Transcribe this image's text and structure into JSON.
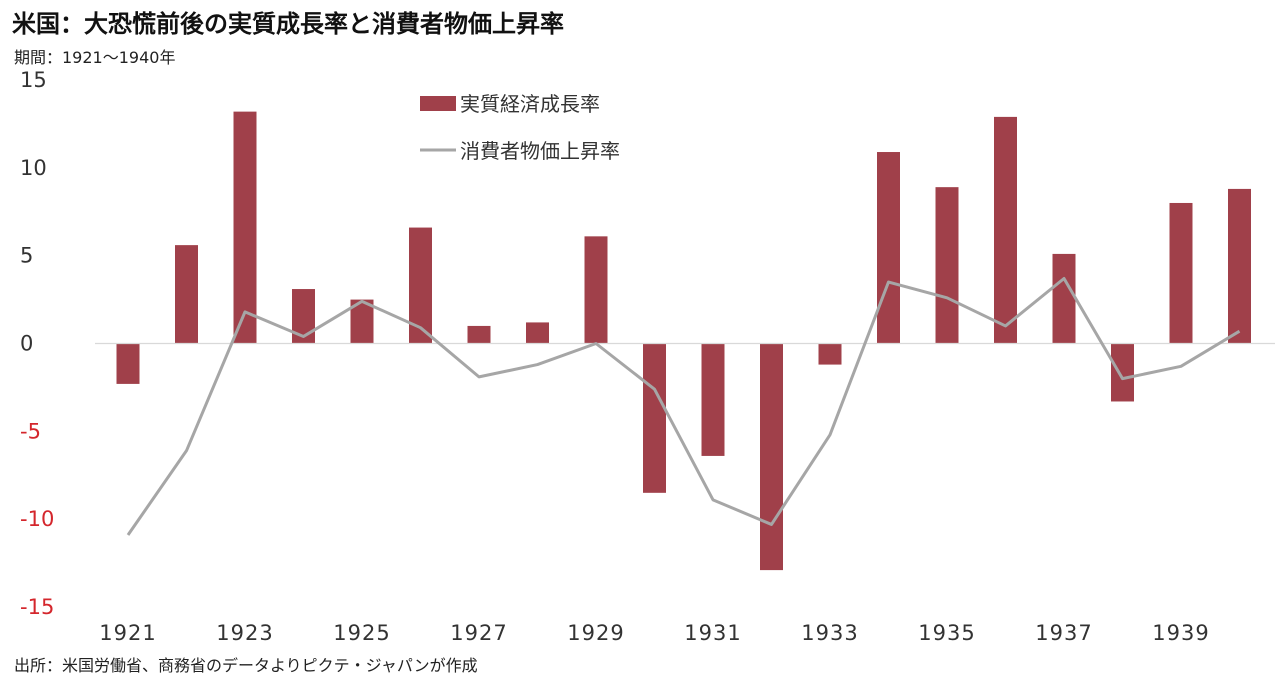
{
  "header": {
    "title": "米国：大恐慌前後の実質成長率と消費者物価上昇率",
    "subtitle": "期間：1921～1940年"
  },
  "footer": {
    "source": "出所：米国労働省、商務省のデータよりピクテ・ジャパンが作成"
  },
  "colors": {
    "bar": "#a0404a",
    "line": "#a6a6a6",
    "negative_tick": "#d4262c",
    "positive_tick": "#333333"
  },
  "chart_data": {
    "type": "bar",
    "categories": [
      1921,
      1922,
      1923,
      1924,
      1925,
      1926,
      1927,
      1928,
      1929,
      1930,
      1931,
      1932,
      1933,
      1934,
      1935,
      1936,
      1937,
      1938,
      1939,
      1940
    ],
    "x_tick_labels": [
      "1921",
      "1923",
      "1925",
      "1927",
      "1929",
      "1931",
      "1933",
      "1935",
      "1937",
      "1939"
    ],
    "ylim": [
      -15,
      15
    ],
    "y_ticks": [
      15,
      10,
      5,
      0,
      -5,
      -10,
      -15
    ],
    "y_tick_labels": [
      "15",
      "10",
      "5",
      "0",
      "-5",
      "-10",
      "-15"
    ],
    "legend_position": "top-center",
    "series": [
      {
        "name": "実質経済成長率",
        "type": "bar",
        "values": [
          -2.3,
          5.6,
          13.2,
          3.1,
          2.5,
          6.6,
          1.0,
          1.2,
          6.1,
          -8.5,
          -6.4,
          -12.9,
          -1.2,
          10.9,
          8.9,
          12.9,
          5.1,
          -3.3,
          8.0,
          8.8
        ]
      },
      {
        "name": "消費者物価上昇率",
        "type": "line",
        "values": [
          -10.9,
          -6.1,
          1.8,
          0.4,
          2.4,
          0.9,
          -1.9,
          -1.2,
          0.0,
          -2.6,
          -8.9,
          -10.3,
          -5.2,
          3.5,
          2.6,
          1.0,
          3.7,
          -2.0,
          -1.3,
          0.7
        ]
      }
    ]
  }
}
